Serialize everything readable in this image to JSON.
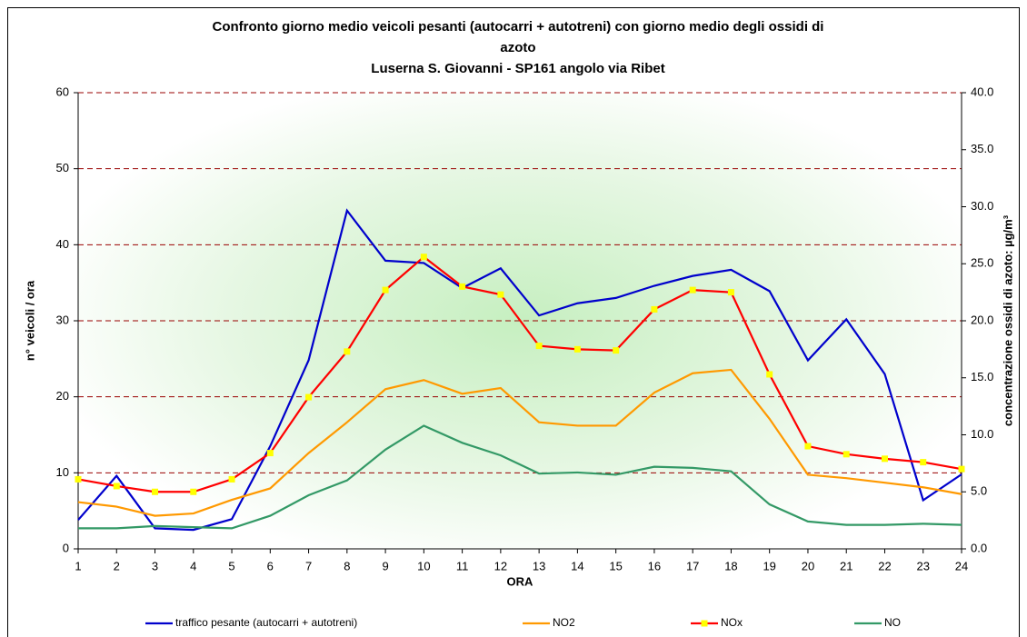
{
  "chart_data": {
    "type": "line",
    "title": [
      "Confronto giorno medio  veicoli pesanti (autocarri + autotreni) con giorno medio degli ossidi di",
      "azoto",
      "Luserna S. Giovanni - SP161 angolo via Ribet"
    ],
    "x_label": "ORA",
    "y_label": "n° veicoli / ora",
    "y2_label": "concentrazione ossidi di azoto: µg/m³",
    "categories": [
      "1",
      "2",
      "3",
      "4",
      "5",
      "6",
      "7",
      "8",
      "9",
      "10",
      "11",
      "12",
      "13",
      "14",
      "15",
      "16",
      "17",
      "18",
      "19",
      "20",
      "21",
      "22",
      "23",
      "24"
    ],
    "ylim": [
      0,
      60
    ],
    "yticks": [
      0,
      10,
      20,
      30,
      40,
      50,
      60
    ],
    "y2lim": [
      0,
      40
    ],
    "y2ticks": [
      {
        "value": 0,
        "label": "0.0"
      },
      {
        "value": 5,
        "label": "5.0"
      },
      {
        "value": 10,
        "label": "10.0"
      },
      {
        "value": 15,
        "label": "15.0"
      },
      {
        "value": 20,
        "label": "20.0"
      },
      {
        "value": 25,
        "label": "25.0"
      },
      {
        "value": 30,
        "label": "30.0"
      },
      {
        "value": 35,
        "label": "35.0"
      },
      {
        "value": 40,
        "label": "40.0"
      }
    ],
    "grid": true,
    "legend": "bottom",
    "series": [
      {
        "name": "traffico pesante (autocarri + autotreni)",
        "color": "#0000cc",
        "axis": "y",
        "values": [
          3.8,
          9.6,
          2.7,
          2.5,
          3.9,
          13.5,
          24.8,
          44.5,
          37.9,
          37.6,
          34.3,
          36.9,
          30.7,
          32.3,
          33.0,
          34.6,
          35.9,
          36.7,
          33.9,
          24.8,
          30.2,
          23.0,
          6.4,
          9.8
        ]
      },
      {
        "name": "NO2",
        "color": "#ff9900",
        "axis": "y2",
        "values": [
          4.1,
          3.7,
          2.9,
          3.1,
          4.3,
          5.3,
          8.4,
          11.1,
          14.0,
          14.8,
          13.6,
          14.1,
          11.1,
          10.8,
          10.8,
          13.7,
          15.4,
          15.7,
          11.4,
          6.5,
          6.2,
          5.8,
          5.4,
          4.8
        ]
      },
      {
        "name": "NOx",
        "color": "#ff0000",
        "axis": "y2",
        "marker": "square",
        "marker_color": "#ffff00",
        "values": [
          6.1,
          5.5,
          5.0,
          5.0,
          6.1,
          8.4,
          13.3,
          17.3,
          22.7,
          25.6,
          23.0,
          22.3,
          17.8,
          17.5,
          17.4,
          21.0,
          22.7,
          22.5,
          15.3,
          9.0,
          8.3,
          7.9,
          7.6,
          7.0
        ]
      },
      {
        "name": "NO",
        "color": "#339966",
        "axis": "y2",
        "values": [
          1.8,
          1.8,
          2.0,
          1.9,
          1.8,
          2.9,
          4.7,
          6.0,
          8.7,
          10.8,
          9.3,
          8.2,
          6.6,
          6.7,
          6.5,
          7.2,
          7.1,
          6.8,
          3.9,
          2.4,
          2.1,
          2.1,
          2.2,
          2.1
        ]
      }
    ]
  }
}
